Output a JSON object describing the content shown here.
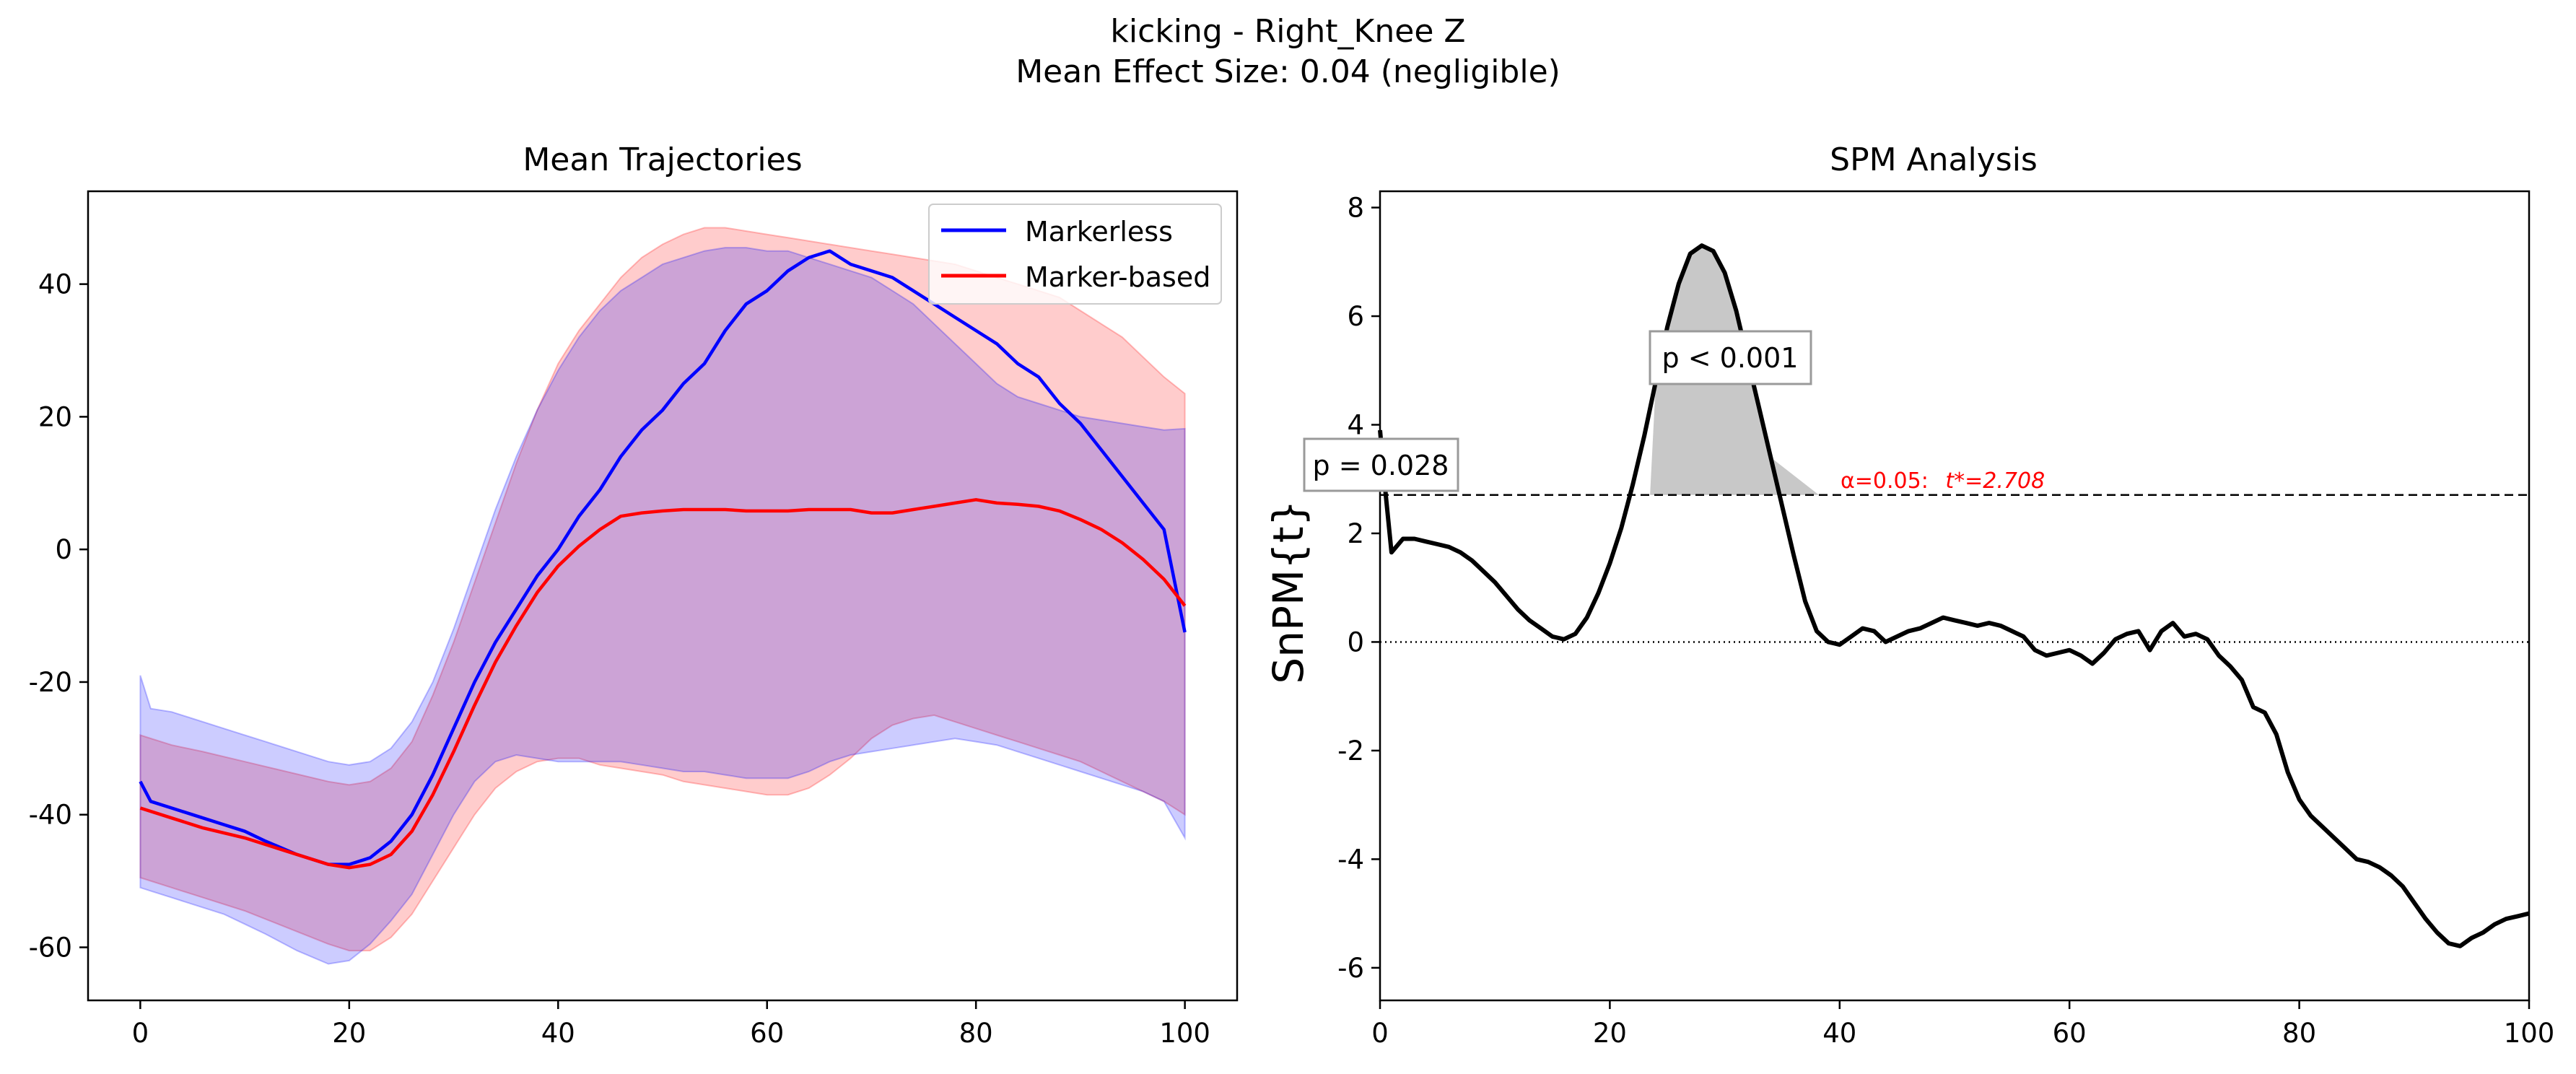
{
  "figure": {
    "title_line1": "kicking - Right_Knee Z",
    "title_line2": "Mean Effect Size: 0.04 (negligible)"
  },
  "colors": {
    "markerless": "#0000ff",
    "marker_based": "#ff0000",
    "markerless_band": "#0000ff",
    "marker_based_band": "#ff0000",
    "spm_line": "#000000",
    "threshold_text": "#ff0000",
    "cluster_fill": "#c8c8c8"
  },
  "chart_data": [
    {
      "type": "line",
      "title": "Mean Trajectories",
      "xlabel": "",
      "ylabel": "",
      "xlim": [
        -5,
        105
      ],
      "ylim": [
        -68,
        54
      ],
      "xticks": [
        0,
        20,
        40,
        60,
        80,
        100
      ],
      "xtick_labels": [
        "0",
        "20",
        "40",
        "60",
        "80",
        "100"
      ],
      "yticks": [
        40,
        20,
        0,
        -20,
        -40,
        -60
      ],
      "ytick_labels": [
        "40",
        "20",
        "0",
        "-20",
        "-40",
        "-60"
      ],
      "grid": false,
      "legend": {
        "position": "top-right",
        "entries": [
          "Markerless",
          "Marker-based"
        ]
      },
      "series": [
        {
          "name": "Markerless",
          "x": [
            0,
            1,
            3,
            5,
            8,
            10,
            12,
            15,
            18,
            20,
            22,
            24,
            26,
            28,
            30,
            32,
            34,
            36,
            38,
            40,
            42,
            44,
            46,
            48,
            50,
            52,
            54,
            56,
            58,
            60,
            62,
            64,
            66,
            68,
            70,
            72,
            74,
            76,
            78,
            80,
            82,
            84,
            86,
            88,
            90,
            92,
            94,
            96,
            98,
            100
          ],
          "mean": [
            -35,
            -38,
            -39,
            -40,
            -41.5,
            -42.5,
            -44,
            -46,
            -47.5,
            -47.5,
            -46.5,
            -44,
            -40,
            -34,
            -27,
            -20,
            -14,
            -9,
            -4,
            0,
            5,
            9,
            14,
            18,
            21,
            25,
            28,
            33,
            37,
            39,
            42,
            44,
            45,
            43,
            42,
            41,
            39,
            37,
            35,
            33,
            31,
            28,
            26,
            22,
            19,
            15,
            11,
            7,
            3,
            -12.5
          ],
          "upper": [
            -19,
            -24,
            -24.5,
            -25.5,
            -27,
            -28,
            -29,
            -30.5,
            -32,
            -32.5,
            -32,
            -30,
            -26,
            -20,
            -12,
            -3,
            6,
            14,
            21,
            27,
            32,
            36,
            39,
            41,
            43,
            44,
            45,
            45.5,
            45.5,
            45,
            45,
            44,
            43,
            42,
            41,
            39,
            37,
            34,
            31,
            28,
            25,
            23,
            22,
            21,
            20,
            19.5,
            19,
            18.5,
            18,
            18.2
          ],
          "lower": [
            -51,
            -51.5,
            -52.5,
            -53.5,
            -55,
            -56.5,
            -58,
            -60.5,
            -62.5,
            -62,
            -59.5,
            -56,
            -52,
            -46,
            -40,
            -35,
            -32,
            -31,
            -31.5,
            -32,
            -32,
            -32,
            -32,
            -32.5,
            -33,
            -33.5,
            -33.5,
            -34,
            -34.5,
            -34.5,
            -34.5,
            -33.5,
            -32,
            -31,
            -30.5,
            -30,
            -29.5,
            -29,
            -28.5,
            -29,
            -29.5,
            -30.5,
            -31.5,
            -32.5,
            -33.5,
            -34.5,
            -35.5,
            -36.5,
            -38,
            -43.5
          ]
        },
        {
          "name": "Marker-based",
          "x": [
            0,
            3,
            6,
            10,
            14,
            18,
            20,
            22,
            24,
            26,
            28,
            30,
            32,
            34,
            36,
            38,
            40,
            42,
            44,
            46,
            48,
            50,
            52,
            54,
            56,
            58,
            60,
            62,
            64,
            66,
            68,
            70,
            72,
            74,
            76,
            78,
            80,
            82,
            84,
            86,
            88,
            90,
            92,
            94,
            96,
            98,
            100
          ],
          "mean": [
            -39,
            -40.5,
            -42,
            -43.5,
            -45.5,
            -47.5,
            -48,
            -47.5,
            -46,
            -42.5,
            -37,
            -30.5,
            -23.5,
            -17,
            -11.5,
            -6.5,
            -2.5,
            0.5,
            3,
            5,
            5.5,
            5.8,
            6,
            6,
            6,
            5.8,
            5.8,
            5.8,
            6,
            6,
            6,
            5.5,
            5.5,
            6,
            6.5,
            7,
            7.5,
            7,
            6.8,
            6.5,
            5.8,
            4.5,
            3,
            1,
            -1.5,
            -4.5,
            -8.5
          ],
          "upper": [
            -28,
            -29.5,
            -30.5,
            -32,
            -33.5,
            -35,
            -35.5,
            -35,
            -33,
            -29,
            -22,
            -14,
            -5,
            4,
            13,
            21,
            28,
            33,
            37,
            41,
            44,
            46,
            47.5,
            48.5,
            48.5,
            48,
            47.5,
            47,
            46.5,
            46,
            45.5,
            45,
            44.5,
            44,
            43.5,
            43,
            42,
            41,
            40,
            39,
            38,
            36,
            34,
            32,
            29,
            26,
            23.5
          ],
          "lower": [
            -49.5,
            -51,
            -52.5,
            -54.5,
            -57,
            -59.5,
            -60.5,
            -60.5,
            -58.5,
            -55,
            -50,
            -45,
            -40,
            -36,
            -33.5,
            -32,
            -31.5,
            -31.5,
            -32.5,
            -33,
            -33.5,
            -34,
            -35,
            -35.5,
            -36,
            -36.5,
            -37,
            -37,
            -36,
            -34,
            -31.5,
            -28.5,
            -26.5,
            -25.5,
            -25,
            -26,
            -27,
            -28,
            -29,
            -30,
            -31,
            -32,
            -33.5,
            -35,
            -36.5,
            -38,
            -40
          ]
        }
      ]
    },
    {
      "type": "line",
      "title": "SPM Analysis",
      "xlabel": "",
      "ylabel": "SnPM{t}",
      "xlim": [
        0,
        100
      ],
      "ylim": [
        -6.6,
        8.3
      ],
      "xticks": [
        0,
        20,
        40,
        60,
        80,
        100
      ],
      "xtick_labels": [
        "0",
        "20",
        "40",
        "60",
        "80",
        "100"
      ],
      "yticks": [
        8,
        6,
        4,
        2,
        0,
        -2,
        -4,
        -6
      ],
      "ytick_labels": [
        "8",
        "6",
        "4",
        "2",
        "0",
        "-2",
        "-4",
        "-6"
      ],
      "grid": false,
      "threshold": 2.708,
      "threshold_label_prefix": "α=0.05:",
      "threshold_label_value": "t*=2.708",
      "zero_line": 0,
      "clusters": [
        {
          "x_start": 0,
          "x_end": 1,
          "p_label": "p = 0.028"
        },
        {
          "x_start": 23.5,
          "x_end": 38.2,
          "p_label": "p < 0.001"
        }
      ],
      "series": [
        {
          "name": "",
          "x": [
            0,
            0.5,
            1,
            2,
            3,
            4,
            5,
            6,
            7,
            8,
            9,
            10,
            11,
            12,
            13,
            14,
            15,
            16,
            17,
            18,
            19,
            20,
            21,
            22,
            23,
            24,
            25,
            26,
            27,
            28,
            29,
            30,
            31,
            32,
            33,
            34,
            35,
            36,
            37,
            38,
            39,
            40,
            41,
            42,
            43,
            44,
            45,
            46,
            47,
            48,
            49,
            50,
            51,
            52,
            53,
            54,
            55,
            56,
            57,
            58,
            59,
            60,
            61,
            62,
            63,
            64,
            65,
            66,
            67,
            68,
            69,
            70,
            71,
            72,
            73,
            74,
            75,
            76,
            77,
            78,
            79,
            80,
            81,
            82,
            83,
            84,
            85,
            86,
            87,
            88,
            89,
            90,
            91,
            92,
            93,
            94,
            95,
            96,
            97,
            98,
            99,
            100
          ],
          "values": [
            3.9,
            2.7,
            1.65,
            1.9,
            1.9,
            1.85,
            1.8,
            1.75,
            1.65,
            1.5,
            1.3,
            1.1,
            0.85,
            0.6,
            0.4,
            0.25,
            0.1,
            0.05,
            0.15,
            0.45,
            0.9,
            1.45,
            2.1,
            2.9,
            3.8,
            4.8,
            5.8,
            6.6,
            7.15,
            7.3,
            7.2,
            6.8,
            6.1,
            5.2,
            4.3,
            3.4,
            2.5,
            1.6,
            0.75,
            0.2,
            0.0,
            -0.05,
            0.1,
            0.25,
            0.2,
            0.0,
            0.1,
            0.2,
            0.25,
            0.35,
            0.45,
            0.4,
            0.35,
            0.3,
            0.35,
            0.3,
            0.2,
            0.1,
            -0.15,
            -0.25,
            -0.2,
            -0.15,
            -0.25,
            -0.4,
            -0.2,
            0.05,
            0.15,
            0.2,
            -0.15,
            0.2,
            0.35,
            0.1,
            0.15,
            0.05,
            -0.25,
            -0.45,
            -0.7,
            -1.2,
            -1.3,
            -1.7,
            -2.4,
            -2.9,
            -3.2,
            -3.4,
            -3.6,
            -3.8,
            -4.0,
            -4.05,
            -4.15,
            -4.3,
            -4.5,
            -4.8,
            -5.1,
            -5.35,
            -5.55,
            -5.6,
            -5.45,
            -5.35,
            -5.2,
            -5.1,
            -5.05,
            -5.0
          ]
        }
      ]
    }
  ]
}
